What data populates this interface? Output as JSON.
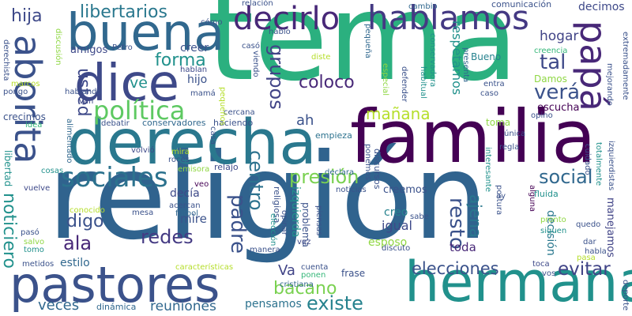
{
  "words": [
    {
      "text": "tema",
      "color": "#2bb07f"
    },
    {
      "text": "religión",
      "color": "#30638e"
    },
    {
      "text": "familia",
      "color": "#440154"
    },
    {
      "text": "derecha",
      "color": "#2a788e"
    },
    {
      "text": "pastores",
      "color": "#3b528b"
    },
    {
      "text": "hermana",
      "color": "#21918c"
    },
    {
      "text": "buena",
      "color": "#31688e"
    },
    {
      "text": "dice",
      "color": "#3e4989"
    },
    {
      "text": "decirlo",
      "color": "#482878"
    },
    {
      "text": "hablamos",
      "color": "#443983"
    },
    {
      "text": "aborita",
      "color": "#3b528b"
    },
    {
      "text": "papá",
      "color": "#482878"
    },
    {
      "text": "política",
      "color": "#5ec962"
    },
    {
      "text": "sociales",
      "color": "#2c728e"
    },
    {
      "text": "libertarios",
      "color": "#2a788e"
    },
    {
      "text": "forma",
      "color": "#21918c"
    },
    {
      "text": "elecciones",
      "color": "#3b528b"
    },
    {
      "text": "presión",
      "color": "#7ad151"
    },
    {
      "text": "existe",
      "color": "#26828e"
    },
    {
      "text": "social",
      "color": "#31688e"
    },
    {
      "text": "evitar",
      "color": "#414487"
    },
    {
      "text": "hija",
      "color": "#3e4989"
    },
    {
      "text": "redes",
      "color": "#443a83"
    },
    {
      "text": "padre",
      "color": "#3b528b"
    },
    {
      "text": "veces",
      "color": "#31688e"
    },
    {
      "text": "verá",
      "color": "#3b528b"
    },
    {
      "text": "tal",
      "color": "#3e4989"
    },
    {
      "text": "ala",
      "color": "#482878"
    },
    {
      "text": "mañana",
      "color": "#b5de2b"
    },
    {
      "text": "grupos",
      "color": "#414487"
    },
    {
      "text": "centro",
      "color": "#2c728e"
    },
    {
      "text": "resto",
      "color": "#3b528b"
    },
    {
      "text": "ajena",
      "color": "#2a788e"
    },
    {
      "text": "coloco",
      "color": "#482878"
    },
    {
      "text": "usted",
      "color": "#3e4989"
    },
    {
      "text": "digo",
      "color": "#3b528b"
    },
    {
      "text": "reuniones",
      "color": "#31688e"
    },
    {
      "text": "bacano",
      "color": "#7ad151"
    },
    {
      "text": "noticiero",
      "color": "#21918c"
    },
    {
      "text": "hogar",
      "color": "#414487"
    },
    {
      "text": "mire",
      "color": "#3b528b"
    },
    {
      "text": "ve",
      "color": "#21918c"
    },
    {
      "text": "ah",
      "color": "#3b528b"
    },
    {
      "text": "Va",
      "color": "#414487"
    },
    {
      "text": "creemos",
      "color": "#3b528b"
    },
    {
      "text": "estilo",
      "color": "#31688e"
    },
    {
      "text": "pensamos",
      "color": "#2c728e"
    },
    {
      "text": "igual",
      "color": "#3e4989"
    },
    {
      "text": "toda",
      "color": "#482878"
    },
    {
      "text": "respetamos",
      "color": "#21918c"
    },
    {
      "text": "escucha",
      "color": "#440154"
    },
    {
      "text": "amigos",
      "color": "#3e4989"
    },
    {
      "text": "esposo",
      "color": "#90d743"
    },
    {
      "text": "decimos",
      "color": "#3e4989"
    },
    {
      "text": "cambio",
      "color": "#31688e"
    },
    {
      "text": "comunicación",
      "color": "#3b528b"
    },
    {
      "text": "creencia",
      "color": "#35b779"
    },
    {
      "text": "Bueno",
      "color": "#26828e"
    },
    {
      "text": "Damos",
      "color": "#8fd744"
    },
    {
      "text": "decisión",
      "color": "#2a788e"
    },
    {
      "text": "creo",
      "color": "#26828e"
    },
    {
      "text": "dinámica",
      "color": "#31688e"
    },
    {
      "text": "manejamos",
      "color": "#414487"
    },
    {
      "text": "frase",
      "color": "#3b528b"
    },
    {
      "text": "decía",
      "color": "#3e4989"
    },
    {
      "text": "hijo",
      "color": "#3b528b"
    },
    {
      "text": "creer",
      "color": "#3b528b"
    },
    {
      "text": "hablan",
      "color": "#3e4989"
    },
    {
      "text": "mamá",
      "color": "#3b528b"
    },
    {
      "text": "toma",
      "color": "#8fd744"
    },
    {
      "text": "izquierda",
      "color": "#21918c"
    },
    {
      "text": "problema",
      "color": "#3b528b"
    },
    {
      "text": "conservadores",
      "color": "#31688e"
    },
    {
      "text": "haciendo",
      "color": "#3b528b"
    },
    {
      "text": "discursos",
      "color": "#3b528b"
    },
    {
      "text": "empieza",
      "color": "#2c728e"
    },
    {
      "text": "fluida",
      "color": "#21918c"
    },
    {
      "text": "relajo",
      "color": "#3e4989"
    },
    {
      "text": "libertad",
      "color": "#21918c"
    },
    {
      "text": "crecimos",
      "color": "#3b528b"
    },
    {
      "text": "religiosa",
      "color": "#3b528b"
    },
    {
      "text": "noticias",
      "color": "#3b528b"
    },
    {
      "text": "declara",
      "color": "#31688e"
    },
    {
      "text": "sabe",
      "color": "#3b528b"
    },
    {
      "text": "vuelve",
      "color": "#3e4989"
    },
    {
      "text": "cosas",
      "color": "#21918c"
    },
    {
      "text": "roces",
      "color": "#3b528b"
    },
    {
      "text": "emisora",
      "color": "#90d743"
    },
    {
      "text": "mira",
      "color": "#b5de2b"
    },
    {
      "text": "veo",
      "color": "#440154"
    },
    {
      "text": "acercan",
      "color": "#3b528b"
    },
    {
      "text": "fútbol",
      "color": "#31688e"
    },
    {
      "text": "mesa",
      "color": "#3b528b"
    },
    {
      "text": "manera",
      "color": "#3b528b"
    },
    {
      "text": "características",
      "color": "#b5de2b"
    },
    {
      "text": "cuenta",
      "color": "#3b528b"
    },
    {
      "text": "ponen",
      "color": "#35b779"
    },
    {
      "text": "cristiana",
      "color": "#31688e"
    },
    {
      "text": "discuto",
      "color": "#3b528b"
    },
    {
      "text": "pronto",
      "color": "#8fd744"
    },
    {
      "text": "siguen",
      "color": "#21918c"
    },
    {
      "text": "quedo",
      "color": "#3b528b"
    },
    {
      "text": "dar",
      "color": "#3b528b"
    },
    {
      "text": "habla",
      "color": "#3b528b"
    },
    {
      "text": "pasa",
      "color": "#b5de2b"
    },
    {
      "text": "toca",
      "color": "#3e4989"
    },
    {
      "text": "vos",
      "color": "#3b528b"
    },
    {
      "text": "metidos",
      "color": "#3b528b"
    },
    {
      "text": "pasó",
      "color": "#3b528b"
    },
    {
      "text": "salvo",
      "color": "#8fd744"
    },
    {
      "text": "tomo",
      "color": "#21918c"
    },
    {
      "text": "conocido",
      "color": "#b5de2b"
    },
    {
      "text": "pongo",
      "color": "#3b528b"
    },
    {
      "text": "marcos",
      "color": "#b5de2b"
    },
    {
      "text": "idea",
      "color": "#35b779"
    },
    {
      "text": "Petro",
      "color": "#3b528b"
    },
    {
      "text": "van",
      "color": "#3e4989"
    },
    {
      "text": "hablando",
      "color": "#3b528b"
    },
    {
      "text": "debatir",
      "color": "#3b528b"
    },
    {
      "text": "alimentado",
      "color": "#31688e"
    },
    {
      "text": "cercana",
      "color": "#3b528b"
    },
    {
      "text": "casa",
      "color": "#3b528b"
    },
    {
      "text": "volvió",
      "color": "#3e4989"
    },
    {
      "text": "elección",
      "color": "#21918c"
    },
    {
      "text": "opinar",
      "color": "#3b528b"
    },
    {
      "text": "vez",
      "color": "#3e4989"
    },
    {
      "text": "piensas",
      "color": "#3b528b"
    },
    {
      "text": "ponemos",
      "color": "#3b528b"
    },
    {
      "text": "interesante",
      "color": "#21918c"
    },
    {
      "text": "postura",
      "color": "#3b528b"
    },
    {
      "text": "alguna",
      "color": "#440154"
    },
    {
      "text": "ay",
      "color": "#3b528b"
    },
    {
      "text": "cuidado",
      "color": "#3b528b"
    },
    {
      "text": "totalmente",
      "color": "#21918c"
    },
    {
      "text": "izquierdistas",
      "color": "#3b528b"
    },
    {
      "text": "deporte",
      "color": "#3b528b"
    },
    {
      "text": "única",
      "color": "#3b528b"
    },
    {
      "text": "regla",
      "color": "#3b528b"
    },
    {
      "text": "opino",
      "color": "#3b528b"
    },
    {
      "text": "caso",
      "color": "#3b528b"
    },
    {
      "text": "entra",
      "color": "#3b528b"
    },
    {
      "text": "mejorando",
      "color": "#3b528b"
    },
    {
      "text": "extremadamente",
      "color": "#3b528b"
    },
    {
      "text": "defender",
      "color": "#3b528b"
    },
    {
      "text": "habitual",
      "color": "#21918c"
    },
    {
      "text": "conservadora",
      "color": "#21918c"
    },
    {
      "text": "especial",
      "color": "#8fd744"
    },
    {
      "text": "pequeña",
      "color": "#31688e"
    },
    {
      "text": "presenta",
      "color": "#31688e"
    },
    {
      "text": "diste",
      "color": "#b5de2b"
    },
    {
      "text": "casó",
      "color": "#3b528b"
    },
    {
      "text": "hablo",
      "color": "#3b528b"
    },
    {
      "text": "relación",
      "color": "#3b528b"
    },
    {
      "text": "cómo",
      "color": "#3b528b"
    },
    {
      "text": "viendo",
      "color": "#3b528b"
    },
    {
      "text": "pequeños",
      "color": "#b5de2b"
    },
    {
      "text": "discusión",
      "color": "#8fd744"
    },
    {
      "text": "derechista",
      "color": "#3b528b"
    }
  ]
}
